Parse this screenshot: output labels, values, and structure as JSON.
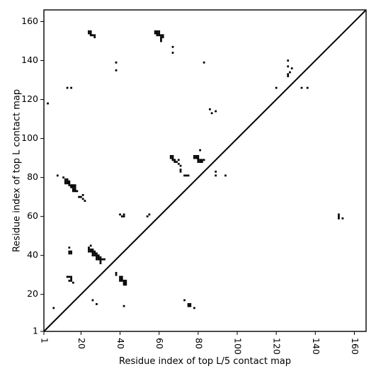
{
  "chart_data": {
    "type": "scatter",
    "xlabel": "Residue index of top L/5 contact map",
    "ylabel": "Residue index of top L contact map",
    "xlim": [
      1,
      166
    ],
    "ylim": [
      1,
      166
    ],
    "x_ticks": [
      1,
      20,
      40,
      60,
      80,
      100,
      120,
      140,
      160
    ],
    "y_ticks": [
      1,
      20,
      40,
      60,
      80,
      100,
      120,
      140,
      160
    ],
    "x_tick_labels": [
      "1",
      "20",
      "40",
      "60",
      "80",
      "100",
      "120",
      "140",
      "160"
    ],
    "y_tick_labels": [
      "1",
      "20",
      "40",
      "60",
      "80",
      "100",
      "120",
      "140",
      "160"
    ],
    "x_tick_rotation": -90,
    "diagonal": true,
    "grid": false,
    "marker_color": "#000000",
    "series": [
      {
        "points": [
          [
            24,
            155
          ],
          [
            25,
            155
          ],
          [
            24,
            154
          ],
          [
            25,
            154
          ],
          [
            25,
            153
          ],
          [
            26,
            153
          ],
          [
            27,
            153
          ],
          [
            27,
            152
          ],
          [
            58,
            155
          ],
          [
            59,
            155
          ],
          [
            60,
            155
          ],
          [
            58,
            154
          ],
          [
            59,
            154
          ],
          [
            60,
            154
          ],
          [
            59,
            153
          ],
          [
            60,
            153
          ],
          [
            61,
            153
          ],
          [
            62,
            153
          ],
          [
            61,
            152
          ],
          [
            62,
            152
          ],
          [
            61,
            151
          ],
          [
            61,
            150
          ],
          [
            67,
            147
          ],
          [
            67,
            144
          ],
          [
            38,
            139
          ],
          [
            38,
            135
          ],
          [
            83,
            139
          ],
          [
            3,
            118
          ],
          [
            13,
            126
          ],
          [
            15,
            126
          ],
          [
            120,
            126
          ],
          [
            133,
            126
          ],
          [
            136,
            126
          ],
          [
            126,
            140
          ],
          [
            126,
            137
          ],
          [
            128,
            136
          ],
          [
            127,
            134
          ],
          [
            126,
            133
          ],
          [
            126,
            132
          ],
          [
            86,
            115
          ],
          [
            87,
            113
          ],
          [
            89,
            114
          ],
          [
            66,
            91
          ],
          [
            67,
            91
          ],
          [
            66,
            90
          ],
          [
            67,
            90
          ],
          [
            67,
            89
          ],
          [
            68,
            89
          ],
          [
            68,
            88
          ],
          [
            69,
            88
          ],
          [
            70,
            89
          ],
          [
            70,
            87
          ],
          [
            71,
            86
          ],
          [
            71,
            84
          ],
          [
            71,
            83
          ],
          [
            73,
            81
          ],
          [
            74,
            81
          ],
          [
            75,
            81
          ],
          [
            78,
            91
          ],
          [
            79,
            91
          ],
          [
            80,
            91
          ],
          [
            78,
            90
          ],
          [
            79,
            90
          ],
          [
            80,
            90
          ],
          [
            80,
            89
          ],
          [
            81,
            89
          ],
          [
            82,
            89
          ],
          [
            83,
            89
          ],
          [
            80,
            88
          ],
          [
            81,
            88
          ],
          [
            82,
            88
          ],
          [
            81,
            94
          ],
          [
            89,
            83
          ],
          [
            89,
            81
          ],
          [
            94,
            81
          ],
          [
            8,
            81
          ],
          [
            11,
            80
          ],
          [
            12,
            79
          ],
          [
            13,
            79
          ],
          [
            12,
            78
          ],
          [
            13,
            78
          ],
          [
            14,
            78
          ],
          [
            12,
            77
          ],
          [
            13,
            77
          ],
          [
            14,
            77
          ],
          [
            14,
            76
          ],
          [
            15,
            76
          ],
          [
            16,
            76
          ],
          [
            17,
            76
          ],
          [
            15,
            75
          ],
          [
            16,
            75
          ],
          [
            17,
            75
          ],
          [
            16,
            74
          ],
          [
            17,
            74
          ],
          [
            16,
            73
          ],
          [
            17,
            73
          ],
          [
            18,
            73
          ],
          [
            19,
            70
          ],
          [
            20,
            70
          ],
          [
            21,
            71
          ],
          [
            21,
            69
          ],
          [
            22,
            68
          ],
          [
            40,
            61
          ],
          [
            41,
            60
          ],
          [
            42,
            60
          ],
          [
            42,
            61
          ],
          [
            54,
            60
          ],
          [
            55,
            61
          ],
          [
            152,
            61
          ],
          [
            152,
            60
          ],
          [
            152,
            59
          ],
          [
            154,
            59
          ],
          [
            14,
            44
          ],
          [
            14,
            42
          ],
          [
            15,
            42
          ],
          [
            14,
            41
          ],
          [
            15,
            41
          ],
          [
            24,
            44
          ],
          [
            25,
            45
          ],
          [
            24,
            43
          ],
          [
            25,
            43
          ],
          [
            26,
            43
          ],
          [
            24,
            42
          ],
          [
            25,
            42
          ],
          [
            26,
            42
          ],
          [
            27,
            42
          ],
          [
            26,
            41
          ],
          [
            27,
            41
          ],
          [
            28,
            41
          ],
          [
            26,
            40
          ],
          [
            27,
            40
          ],
          [
            28,
            40
          ],
          [
            29,
            40
          ],
          [
            28,
            39
          ],
          [
            29,
            39
          ],
          [
            30,
            39
          ],
          [
            28,
            38
          ],
          [
            29,
            38
          ],
          [
            30,
            38
          ],
          [
            31,
            38
          ],
          [
            32,
            38
          ],
          [
            30,
            37
          ],
          [
            30,
            36
          ],
          [
            38,
            31
          ],
          [
            38,
            30
          ],
          [
            40,
            29
          ],
          [
            41,
            29
          ],
          [
            40,
            28
          ],
          [
            41,
            28
          ],
          [
            40,
            27
          ],
          [
            41,
            27
          ],
          [
            42,
            27
          ],
          [
            43,
            27
          ],
          [
            42,
            26
          ],
          [
            43,
            26
          ],
          [
            42,
            25
          ],
          [
            43,
            25
          ],
          [
            13,
            29
          ],
          [
            14,
            29
          ],
          [
            15,
            29
          ],
          [
            15,
            28
          ],
          [
            14,
            27
          ],
          [
            15,
            27
          ],
          [
            16,
            26
          ],
          [
            42,
            14
          ],
          [
            26,
            17
          ],
          [
            28,
            15
          ],
          [
            73,
            17
          ],
          [
            75,
            15
          ],
          [
            76,
            15
          ],
          [
            75,
            14
          ],
          [
            76,
            14
          ],
          [
            78,
            13
          ],
          [
            6,
            13
          ]
        ]
      }
    ]
  }
}
